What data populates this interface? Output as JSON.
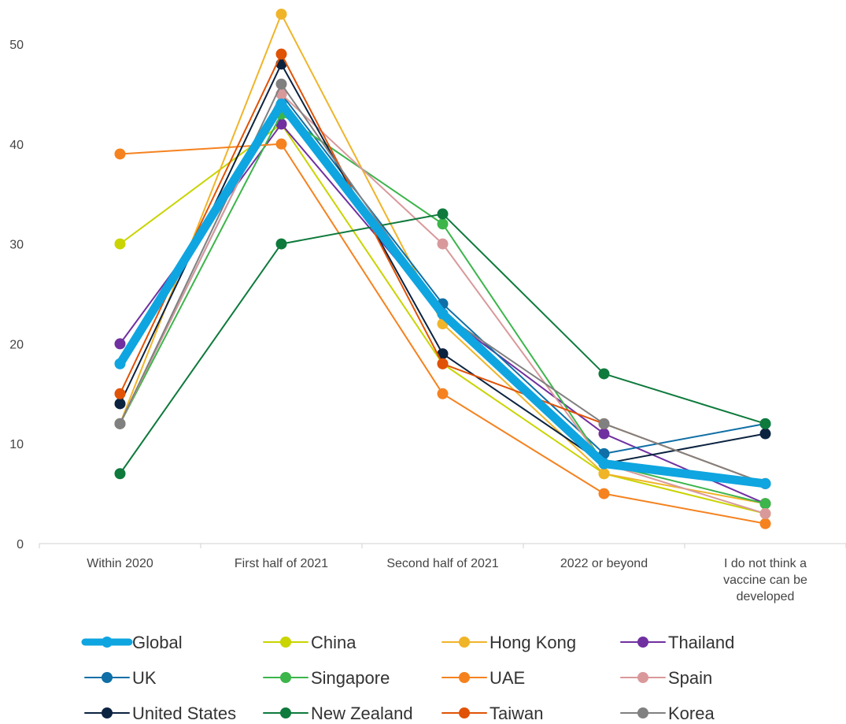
{
  "chart_data": {
    "type": "line",
    "title": "",
    "xlabel": "",
    "ylabel": "",
    "categories": [
      [
        "Within 2020"
      ],
      [
        "First half of 2021"
      ],
      [
        "Second half of 2021"
      ],
      [
        "2022 or beyond"
      ],
      [
        "I do not think a",
        "vaccine can be",
        "developed"
      ]
    ],
    "ylim": [
      0,
      50
    ],
    "yticks": [
      0,
      10,
      20,
      30,
      40,
      50
    ],
    "grid": false,
    "legend_placement": "bottom",
    "series": [
      {
        "name": "Global",
        "color": "#0fa5e0",
        "emphasis": true,
        "values": [
          18,
          44,
          23,
          8,
          6
        ]
      },
      {
        "name": "China",
        "color": "#c9d400",
        "values": [
          30,
          42,
          18,
          7,
          3
        ]
      },
      {
        "name": "Hong Kong",
        "color": "#f0b429",
        "values": [
          12,
          53,
          22,
          7,
          4
        ]
      },
      {
        "name": "Thailand",
        "color": "#7030a0",
        "values": [
          20,
          42,
          23,
          11,
          4
        ]
      },
      {
        "name": "UK",
        "color": "#0f6fa6",
        "values": [
          12,
          45,
          24,
          9,
          12
        ]
      },
      {
        "name": "Singapore",
        "color": "#3cb54a",
        "values": [
          12,
          43,
          32,
          8,
          4
        ]
      },
      {
        "name": "UAE",
        "color": "#f5821f",
        "values": [
          39,
          40,
          15,
          5,
          2
        ]
      },
      {
        "name": "Spain",
        "color": "#d9999b",
        "values": [
          12,
          45,
          30,
          8,
          3
        ]
      },
      {
        "name": "United States",
        "color": "#0c2340",
        "values": [
          14,
          48,
          19,
          8,
          11
        ]
      },
      {
        "name": "New Zealand",
        "color": "#0e7a3c",
        "values": [
          7,
          30,
          33,
          17,
          12
        ]
      },
      {
        "name": "Taiwan",
        "color": "#e05206",
        "values": [
          15,
          49,
          18,
          12,
          6
        ]
      },
      {
        "name": "Korea",
        "color": "#808080",
        "values": [
          12,
          46,
          23,
          12,
          6
        ]
      }
    ]
  }
}
